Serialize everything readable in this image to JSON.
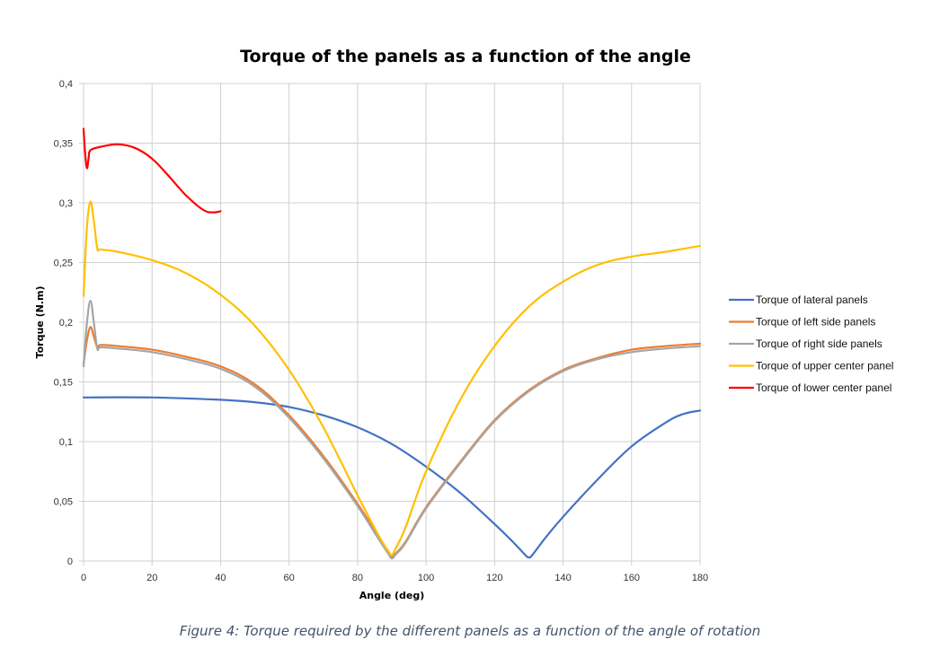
{
  "figure": {
    "caption": "Figure 4: Torque required by the different panels as a function of the angle of rotation"
  },
  "chart_data": {
    "type": "line",
    "title": "Torque of the panels as a function of the angle",
    "xlabel": "Angle (deg)",
    "ylabel": "Torque (N.m)",
    "xlim": [
      0,
      180
    ],
    "ylim": [
      0,
      0.4
    ],
    "xticks": [
      0,
      20,
      40,
      60,
      80,
      100,
      120,
      140,
      160,
      180
    ],
    "yticks": [
      0,
      0.05,
      0.1,
      0.15,
      0.2,
      0.25,
      0.3,
      0.35,
      0.4
    ],
    "ytick_labels": [
      "0",
      "0,05",
      "0,1",
      "0,15",
      "0,2",
      "0,25",
      "0,3",
      "0,35",
      "0,4"
    ],
    "grid": true,
    "legend_position": "right",
    "series": [
      {
        "name": "Torque of lateral panels",
        "color": "#4472c4",
        "x": [
          0,
          20,
          40,
          50,
          60,
          70,
          80,
          90,
          100,
          110,
          120,
          125,
          129,
          130,
          131,
          135,
          140,
          150,
          160,
          170,
          175,
          180
        ],
        "y": [
          0.137,
          0.137,
          0.135,
          0.133,
          0.129,
          0.122,
          0.112,
          0.098,
          0.079,
          0.057,
          0.031,
          0.017,
          0.005,
          0.003,
          0.005,
          0.02,
          0.037,
          0.068,
          0.096,
          0.116,
          0.123,
          0.126
        ]
      },
      {
        "name": "Torque of left side panels",
        "color": "#ed7d31",
        "x": [
          0,
          1,
          2,
          3,
          4,
          5,
          10,
          20,
          30,
          40,
          50,
          60,
          70,
          80,
          86,
          89,
          90,
          91,
          94,
          100,
          110,
          120,
          130,
          140,
          150,
          160,
          170,
          180
        ],
        "y": [
          0.165,
          0.185,
          0.196,
          0.188,
          0.179,
          0.181,
          0.18,
          0.177,
          0.171,
          0.163,
          0.148,
          0.122,
          0.088,
          0.048,
          0.021,
          0.008,
          0.004,
          0.006,
          0.016,
          0.045,
          0.083,
          0.118,
          0.143,
          0.16,
          0.17,
          0.177,
          0.18,
          0.182
        ]
      },
      {
        "name": "Torque of right side panels",
        "color": "#a5a5a5",
        "x": [
          0,
          1,
          2,
          3,
          4,
          5,
          10,
          20,
          30,
          40,
          50,
          60,
          70,
          80,
          86,
          89,
          90,
          91,
          94,
          100,
          110,
          120,
          130,
          140,
          150,
          160,
          170,
          180
        ],
        "y": [
          0.163,
          0.2,
          0.218,
          0.2,
          0.178,
          0.179,
          0.178,
          0.175,
          0.169,
          0.161,
          0.146,
          0.12,
          0.086,
          0.046,
          0.019,
          0.006,
          0.002,
          0.005,
          0.015,
          0.044,
          0.082,
          0.117,
          0.142,
          0.159,
          0.169,
          0.175,
          0.178,
          0.18
        ]
      },
      {
        "name": "Torque of upper center panel",
        "color": "#ffc000",
        "x": [
          0,
          1,
          2,
          3,
          4,
          5,
          10,
          20,
          30,
          40,
          50,
          60,
          70,
          80,
          86,
          89,
          90,
          91,
          94,
          100,
          110,
          120,
          130,
          140,
          150,
          160,
          170,
          180
        ],
        "y": [
          0.222,
          0.28,
          0.301,
          0.285,
          0.262,
          0.261,
          0.259,
          0.252,
          0.241,
          0.223,
          0.197,
          0.16,
          0.112,
          0.055,
          0.022,
          0.008,
          0.005,
          0.01,
          0.028,
          0.075,
          0.135,
          0.18,
          0.213,
          0.234,
          0.248,
          0.255,
          0.259,
          0.264
        ]
      },
      {
        "name": "Torque of lower center panel",
        "color": "#ff0000",
        "x": [
          0,
          0.5,
          1,
          1.5,
          2,
          5,
          10,
          15,
          20,
          25,
          30,
          35,
          38,
          40
        ],
        "y": [
          0.362,
          0.34,
          0.329,
          0.338,
          0.344,
          0.347,
          0.349,
          0.346,
          0.337,
          0.322,
          0.306,
          0.294,
          0.292,
          0.293
        ]
      }
    ]
  }
}
